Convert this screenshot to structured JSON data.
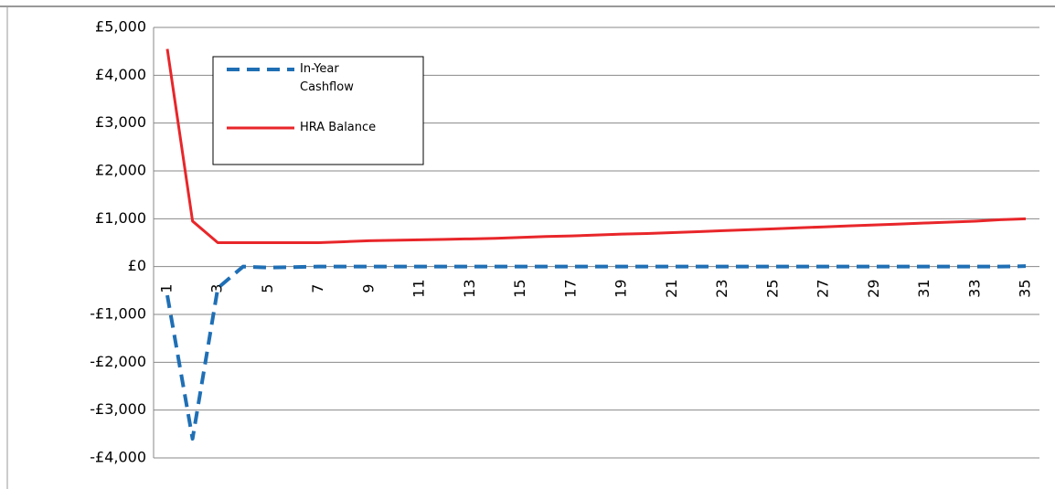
{
  "chart_data": {
    "type": "line",
    "categories": [
      "1",
      null,
      "3",
      null,
      "5",
      null,
      "7",
      null,
      "9",
      null,
      "11",
      null,
      "13",
      null,
      "15",
      null,
      "17",
      null,
      "19",
      null,
      "21",
      null,
      "23",
      null,
      "25",
      null,
      "27",
      null,
      "29",
      null,
      "31",
      null,
      "33",
      null,
      "35"
    ],
    "series": [
      {
        "name": "In-Year Cashflow",
        "color": "#1f6fb5",
        "dashed": true,
        "values": [
          -600,
          -3600,
          -450,
          0,
          -20,
          -10,
          0,
          0,
          0,
          0,
          0,
          0,
          0,
          0,
          0,
          0,
          0,
          0,
          0,
          0,
          0,
          0,
          0,
          0,
          0,
          0,
          0,
          0,
          0,
          0,
          0,
          0,
          0,
          0,
          10
        ]
      },
      {
        "name": "HRA Balance",
        "color": "#e8262a",
        "dashed": false,
        "values": [
          4550,
          950,
          500,
          500,
          500,
          500,
          500,
          520,
          540,
          550,
          560,
          570,
          580,
          590,
          610,
          630,
          640,
          660,
          680,
          690,
          710,
          730,
          750,
          770,
          790,
          810,
          830,
          850,
          870,
          890,
          910,
          930,
          950,
          980,
          1000
        ]
      }
    ],
    "ylim": [
      -4000,
      5000
    ],
    "yticks": [
      {
        "value": -4000,
        "label": "-£4,000"
      },
      {
        "value": -3000,
        "label": "-£3,000"
      },
      {
        "value": -2000,
        "label": "-£2,000"
      },
      {
        "value": -1000,
        "label": "-£1,000"
      },
      {
        "value": 0,
        "label": "£0"
      },
      {
        "value": 1000,
        "label": "£1,000"
      },
      {
        "value": 2000,
        "label": "£2,000"
      },
      {
        "value": 3000,
        "label": "£3,000"
      },
      {
        "value": 4000,
        "label": "£4,000"
      },
      {
        "value": 5000,
        "label": "£5,000"
      }
    ],
    "grid": true
  }
}
